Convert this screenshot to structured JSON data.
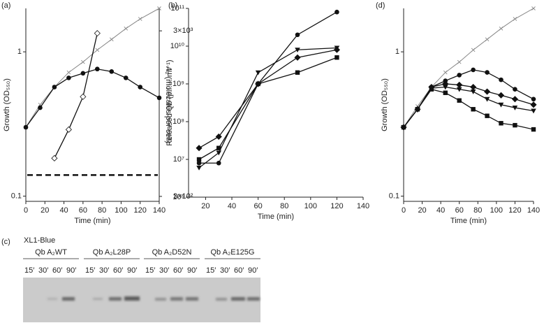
{
  "chart_data": [
    {
      "type": "line",
      "label": "(a)",
      "xlabel": "Time (min)",
      "ylabel": "Growth (OD₅₅₀)",
      "y2label": "A₂ (molecules per cell)",
      "x": [
        0,
        15,
        30,
        45,
        60,
        75,
        90,
        105,
        120,
        140
      ],
      "xlim": [
        0,
        140
      ],
      "xticks": [
        0,
        20,
        40,
        60,
        80,
        100,
        120,
        140
      ],
      "ylog": true,
      "ylim": [
        0.092,
        2.0
      ],
      "yticks": [
        0.1,
        1
      ],
      "y2log": true,
      "y2lim": [
        280,
        4100
      ],
      "y2ticks": [
        {
          "value": 300,
          "label": "3×10²"
        },
        {
          "value": 3000,
          "label": "3×10³"
        }
      ],
      "hline": {
        "value": 0.14,
        "style": "dashed"
      },
      "series": [
        {
          "color": "#888888",
          "marker": "cross",
          "values": [
            0.3,
            0.43,
            0.57,
            0.72,
            0.85,
            1.03,
            1.22,
            1.45,
            1.69,
            2.0
          ]
        },
        {
          "color": "#111111",
          "marker": "circle",
          "values": [
            0.3,
            0.41,
            0.57,
            0.66,
            0.71,
            0.76,
            0.73,
            0.66,
            0.57,
            0.48
          ]
        },
        {
          "color": "#111111",
          "marker": "open-diamond",
          "axis": "y2",
          "x": [
            30,
            45,
            60,
            75
          ],
          "values": [
            510,
            760,
            1200,
            2900
          ]
        }
      ]
    },
    {
      "type": "line",
      "label": "(b)",
      "xlabel": "Time (min)",
      "ylabel": "Released Qb (p.f.u. ml⁻¹)",
      "x": [
        15,
        30,
        60,
        90,
        120
      ],
      "xlim": [
        7,
        140
      ],
      "xticks": [
        20,
        40,
        60,
        80,
        100,
        120,
        140
      ],
      "ylog": true,
      "ylim": [
        1000000,
        100000000000
      ],
      "yticks": [
        {
          "value": 1000000,
          "label": "10⁶"
        },
        {
          "value": 10000000,
          "label": "10⁷"
        },
        {
          "value": 100000000,
          "label": "10⁸"
        },
        {
          "value": 1000000000,
          "label": "10⁹"
        },
        {
          "value": 10000000000,
          "label": "10¹⁰"
        },
        {
          "value": 100000000000,
          "label": "10¹¹"
        }
      ],
      "series": [
        {
          "color": "#111111",
          "marker": "circle",
          "values": [
            8000000,
            8000000,
            1000000000,
            20000000000,
            80000000000
          ]
        },
        {
          "color": "#111111",
          "marker": "square",
          "values": [
            10000000,
            20000000,
            1000000000,
            2000000000,
            5000000000
          ]
        },
        {
          "color": "#111111",
          "marker": "diamond",
          "values": [
            20000000,
            40000000,
            1000000000,
            5000000000,
            8000000000
          ]
        },
        {
          "color": "#111111",
          "marker": "triangle-down",
          "values": [
            6000000,
            15000000,
            2000000000,
            8000000000,
            9000000000
          ]
        }
      ]
    },
    {
      "type": "line",
      "label": "(d)",
      "xlabel": "Time (min)",
      "ylabel": "Growth (OD₅₅₀)",
      "x": [
        0,
        15,
        30,
        45,
        60,
        75,
        90,
        105,
        120,
        140
      ],
      "xlim": [
        0,
        140
      ],
      "xticks": [
        0,
        20,
        40,
        60,
        80,
        100,
        120,
        140
      ],
      "ylog": true,
      "ylim": [
        0.092,
        2.0
      ],
      "yticks": [
        0.1,
        1
      ],
      "series": [
        {
          "color": "#888888",
          "marker": "cross",
          "values": [
            0.3,
            0.42,
            0.57,
            0.72,
            0.85,
            1.03,
            1.22,
            1.45,
            1.69,
            2.0
          ]
        },
        {
          "color": "#111111",
          "marker": "circle",
          "values": [
            0.3,
            0.4,
            0.57,
            0.63,
            0.69,
            0.75,
            0.72,
            0.64,
            0.55,
            0.47
          ]
        },
        {
          "color": "#111111",
          "marker": "diamond",
          "values": [
            0.3,
            0.4,
            0.57,
            0.6,
            0.59,
            0.57,
            0.53,
            0.5,
            0.47,
            0.43
          ]
        },
        {
          "color": "#111111",
          "marker": "triangle-down",
          "values": [
            0.3,
            0.4,
            0.56,
            0.57,
            0.55,
            0.53,
            0.47,
            0.43,
            0.41,
            0.39
          ]
        },
        {
          "color": "#111111",
          "marker": "square",
          "values": [
            0.3,
            0.4,
            0.55,
            0.52,
            0.46,
            0.4,
            0.36,
            0.32,
            0.31,
            0.29
          ]
        }
      ]
    }
  ],
  "panel_c": {
    "label": "(c)",
    "strain": "XL1-Blue",
    "groups": [
      {
        "name": "Qb A₂WT",
        "lanes": [
          "15′",
          "30′",
          "60′",
          "90′"
        ]
      },
      {
        "name": "Qb A₂L28P",
        "lanes": [
          "15′",
          "30′",
          "60′",
          "90′"
        ]
      },
      {
        "name": "Qb A₂D52N",
        "lanes": [
          "15′",
          "30′",
          "60′",
          "90′"
        ]
      },
      {
        "name": "Qb A₂E125G",
        "lanes": [
          "15′",
          "30′",
          "60′",
          "90′"
        ]
      }
    ]
  }
}
